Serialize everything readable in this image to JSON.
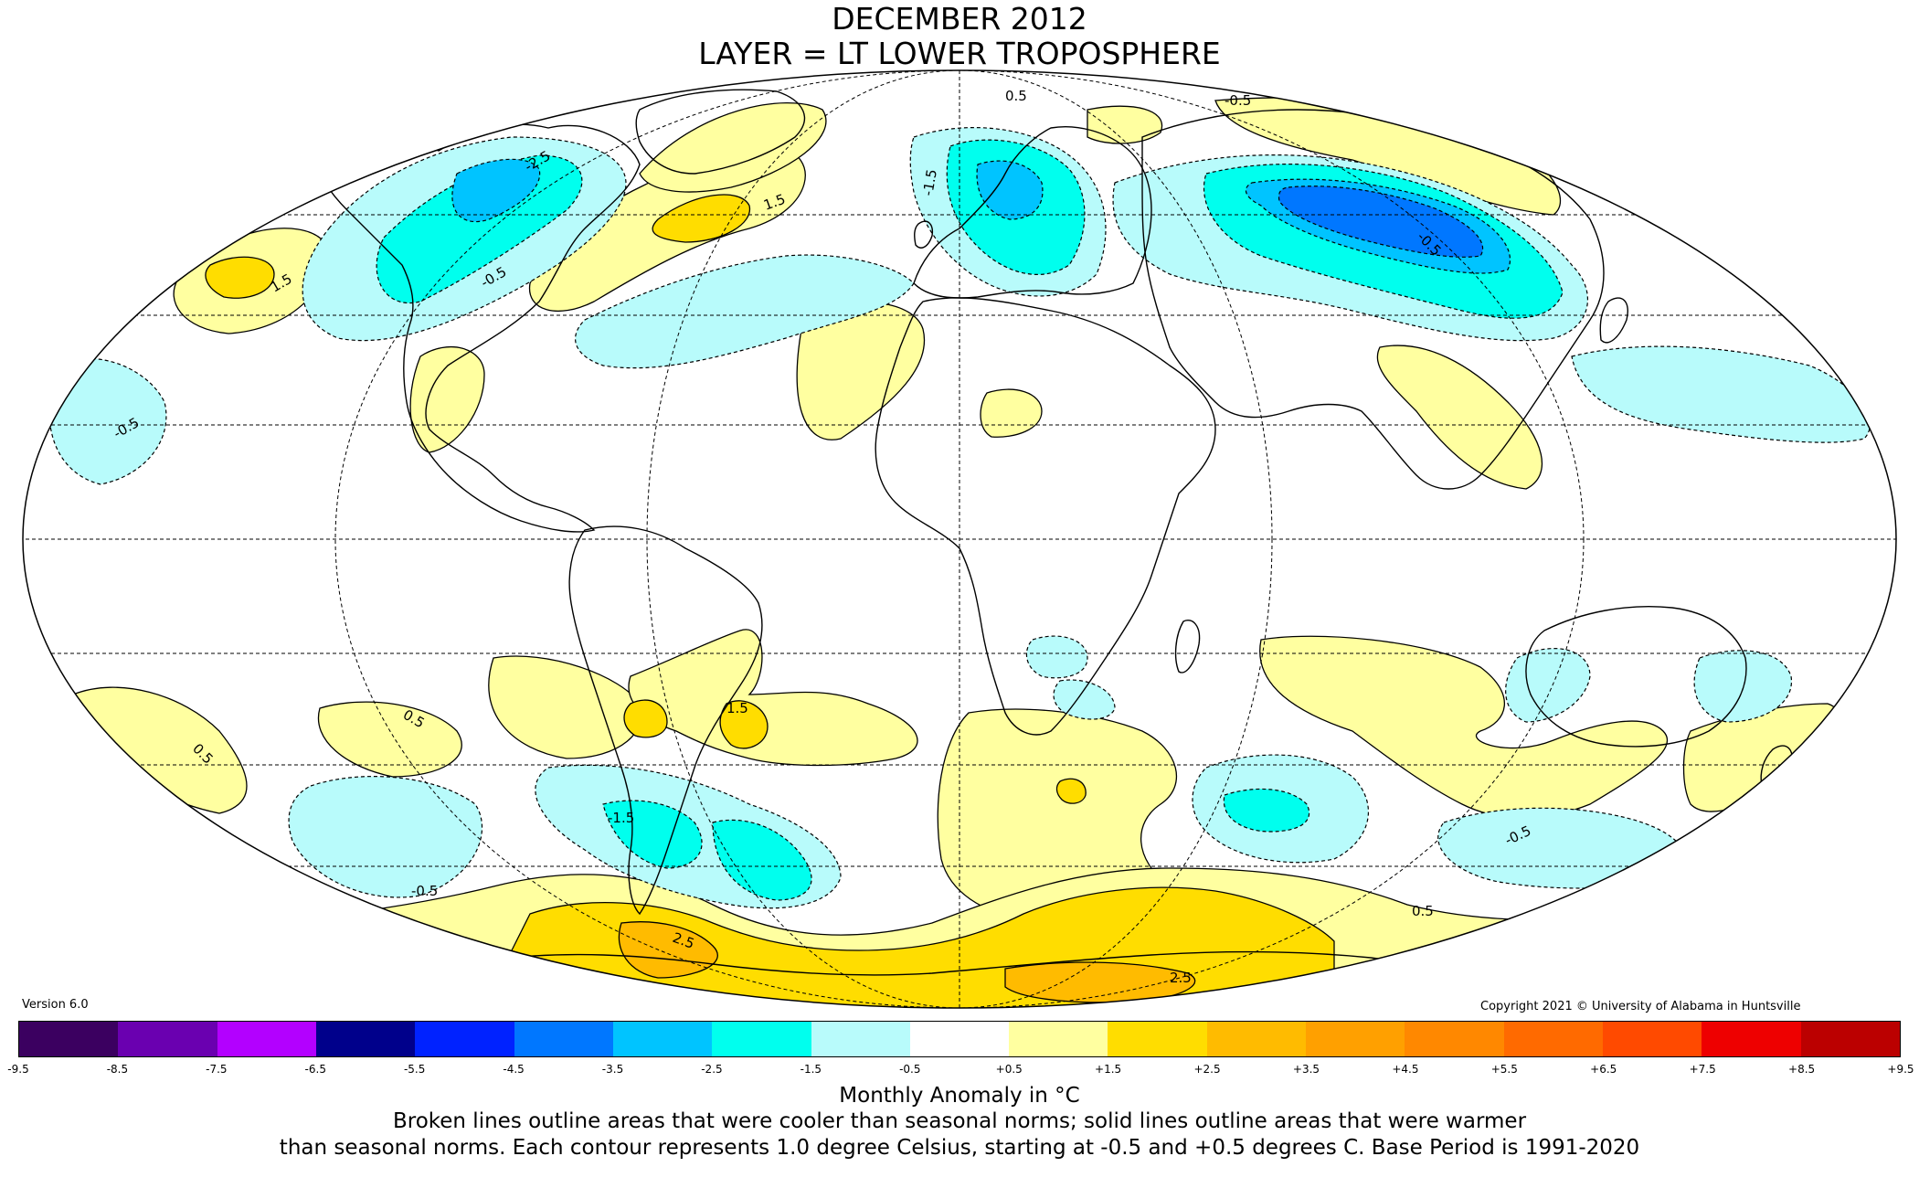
{
  "title": {
    "line1": "DECEMBER 2012",
    "line2": "LAYER = LT LOWER TROPOSPHERE"
  },
  "version": "Version 6.0",
  "copyright": "Copyright 2021 © University of Alabama in Huntsville",
  "legend": {
    "unit_label": "Monthly Anomaly in °C",
    "caption_line1": "Broken lines outline areas that were cooler than seasonal norms; solid lines outline areas that were warmer",
    "caption_line2": "than seasonal norms. Each contour represents 1.0 degree Celsius, starting at -0.5 and +0.5 degrees C. Base Period is 1991-2020",
    "ticks": [
      "-9.5",
      "-8.5",
      "-7.5",
      "-6.5",
      "-5.5",
      "-4.5",
      "-3.5",
      "-2.5",
      "-1.5",
      "-0.5",
      "+0.5",
      "+1.5",
      "+2.5",
      "+3.5",
      "+4.5",
      "+5.5",
      "+6.5",
      "+7.5",
      "+8.5",
      "+9.5"
    ],
    "colors": [
      "#3b0060",
      "#6a00b0",
      "#b300ff",
      "#00008b",
      "#0022ff",
      "#0077ff",
      "#00c4ff",
      "#00ffee",
      "#b8fbfb",
      "#ffffff",
      "#ffffa0",
      "#ffdd00",
      "#ffbb00",
      "#ffa000",
      "#ff8800",
      "#ff6a00",
      "#ff4a00",
      "#ee0000",
      "#bb0000"
    ]
  },
  "map": {
    "projection": "Mollweide",
    "contour_labels": [
      "-2.5",
      "-1.5",
      "-1.5",
      "-0.5",
      "-0.5",
      "-0.5",
      "-0.5",
      "0.5",
      "0.5",
      "0.5",
      "1.5",
      "1.5",
      "1.5",
      "2.5",
      "2.5",
      "-0.5",
      "0.5",
      "-0.5"
    ]
  }
}
